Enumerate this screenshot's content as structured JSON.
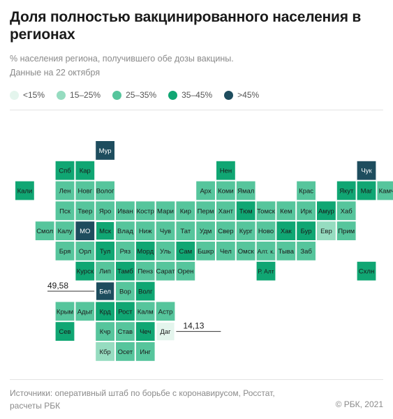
{
  "header": {
    "title": "Доля полностью вакцинированного населения в регионах",
    "subtitle": "% населения региона, получившего обе дозы вакцины.",
    "date": "Данные на 22 октября"
  },
  "legend": [
    {
      "label": "<15%",
      "color": "#e4f5ed"
    },
    {
      "label": "15–25%",
      "color": "#96dcc0"
    },
    {
      "label": "25–35%",
      "color": "#56c59c"
    },
    {
      "label": "35–45%",
      "color": "#10a673"
    },
    {
      "label": ">45%",
      "color": "#1e4d5e"
    }
  ],
  "chart_data": {
    "type": "heatmap",
    "layout": "tile grid map of Russian regions",
    "bins": [
      "<15%",
      "15–25%",
      "25–35%",
      "35–45%",
      ">45%"
    ],
    "regions": [
      {
        "name": "Мур",
        "col": 4,
        "row": 0,
        "bin": 4
      },
      {
        "name": "Спб",
        "col": 2,
        "row": 1,
        "bin": 3
      },
      {
        "name": "Кар",
        "col": 3,
        "row": 1,
        "bin": 3
      },
      {
        "name": "Нен",
        "col": 10,
        "row": 1,
        "bin": 3
      },
      {
        "name": "Чук",
        "col": 17,
        "row": 1,
        "bin": 4
      },
      {
        "name": "Кали",
        "col": 0,
        "row": 2,
        "bin": 3
      },
      {
        "name": "Лен",
        "col": 2,
        "row": 2,
        "bin": 2
      },
      {
        "name": "Новг",
        "col": 3,
        "row": 2,
        "bin": 2
      },
      {
        "name": "Волог",
        "col": 4,
        "row": 2,
        "bin": 2
      },
      {
        "name": "Арх",
        "col": 9,
        "row": 2,
        "bin": 2
      },
      {
        "name": "Коми",
        "col": 10,
        "row": 2,
        "bin": 2
      },
      {
        "name": "Ямал",
        "col": 11,
        "row": 2,
        "bin": 2
      },
      {
        "name": "Крас",
        "col": 14,
        "row": 2,
        "bin": 2
      },
      {
        "name": "Якут",
        "col": 16,
        "row": 2,
        "bin": 3
      },
      {
        "name": "Маг",
        "col": 17,
        "row": 2,
        "bin": 3
      },
      {
        "name": "Камч",
        "col": 18,
        "row": 2,
        "bin": 2
      },
      {
        "name": "Пск",
        "col": 2,
        "row": 3,
        "bin": 2
      },
      {
        "name": "Твер",
        "col": 3,
        "row": 3,
        "bin": 2
      },
      {
        "name": "Яро",
        "col": 4,
        "row": 3,
        "bin": 2
      },
      {
        "name": "Иван",
        "col": 5,
        "row": 3,
        "bin": 2
      },
      {
        "name": "Костр",
        "col": 6,
        "row": 3,
        "bin": 2
      },
      {
        "name": "Мари",
        "col": 7,
        "row": 3,
        "bin": 2
      },
      {
        "name": "Кир",
        "col": 8,
        "row": 3,
        "bin": 2
      },
      {
        "name": "Перм",
        "col": 9,
        "row": 3,
        "bin": 2
      },
      {
        "name": "Хант",
        "col": 10,
        "row": 3,
        "bin": 2
      },
      {
        "name": "Тюм",
        "col": 11,
        "row": 3,
        "bin": 3
      },
      {
        "name": "Томск",
        "col": 12,
        "row": 3,
        "bin": 2
      },
      {
        "name": "Кем",
        "col": 13,
        "row": 3,
        "bin": 2
      },
      {
        "name": "Ирк",
        "col": 14,
        "row": 3,
        "bin": 2
      },
      {
        "name": "Амур",
        "col": 15,
        "row": 3,
        "bin": 3
      },
      {
        "name": "Хаб",
        "col": 16,
        "row": 3,
        "bin": 2
      },
      {
        "name": "Смол",
        "col": 1,
        "row": 4,
        "bin": 2
      },
      {
        "name": "Калу",
        "col": 2,
        "row": 4,
        "bin": 2
      },
      {
        "name": "МО",
        "col": 3,
        "row": 4,
        "bin": 4
      },
      {
        "name": "Мск",
        "col": 4,
        "row": 4,
        "bin": 3,
        "highlight": true
      },
      {
        "name": "Влад",
        "col": 5,
        "row": 4,
        "bin": 2
      },
      {
        "name": "Ниж",
        "col": 6,
        "row": 4,
        "bin": 2
      },
      {
        "name": "Чув",
        "col": 7,
        "row": 4,
        "bin": 2
      },
      {
        "name": "Тат",
        "col": 8,
        "row": 4,
        "bin": 2
      },
      {
        "name": "Удм",
        "col": 9,
        "row": 4,
        "bin": 2
      },
      {
        "name": "Свер",
        "col": 10,
        "row": 4,
        "bin": 2
      },
      {
        "name": "Кург",
        "col": 11,
        "row": 4,
        "bin": 2
      },
      {
        "name": "Ново",
        "col": 12,
        "row": 4,
        "bin": 2
      },
      {
        "name": "Хак",
        "col": 13,
        "row": 4,
        "bin": 3
      },
      {
        "name": "Бур",
        "col": 14,
        "row": 4,
        "bin": 3
      },
      {
        "name": "Евр",
        "col": 15,
        "row": 4,
        "bin": 1
      },
      {
        "name": "Прим",
        "col": 16,
        "row": 4,
        "bin": 2
      },
      {
        "name": "Бря",
        "col": 2,
        "row": 5,
        "bin": 2
      },
      {
        "name": "Орл",
        "col": 3,
        "row": 5,
        "bin": 2
      },
      {
        "name": "Тул",
        "col": 4,
        "row": 5,
        "bin": 3
      },
      {
        "name": "Ряз",
        "col": 5,
        "row": 5,
        "bin": 2
      },
      {
        "name": "Морд",
        "col": 6,
        "row": 5,
        "bin": 3
      },
      {
        "name": "Уль",
        "col": 7,
        "row": 5,
        "bin": 2
      },
      {
        "name": "Сам",
        "col": 8,
        "row": 5,
        "bin": 3
      },
      {
        "name": "Бшкр",
        "col": 9,
        "row": 5,
        "bin": 2
      },
      {
        "name": "Чел",
        "col": 10,
        "row": 5,
        "bin": 2
      },
      {
        "name": "Омск",
        "col": 11,
        "row": 5,
        "bin": 2
      },
      {
        "name": "Алт. к.",
        "col": 12,
        "row": 5,
        "bin": 2
      },
      {
        "name": "Тыва",
        "col": 13,
        "row": 5,
        "bin": 2
      },
      {
        "name": "Заб",
        "col": 14,
        "row": 5,
        "bin": 2
      },
      {
        "name": "Курск",
        "col": 3,
        "row": 6,
        "bin": 3
      },
      {
        "name": "Лип",
        "col": 4,
        "row": 6,
        "bin": 2
      },
      {
        "name": "Тамб",
        "col": 5,
        "row": 6,
        "bin": 3
      },
      {
        "name": "Пенз",
        "col": 6,
        "row": 6,
        "bin": 2
      },
      {
        "name": "Сарат",
        "col": 7,
        "row": 6,
        "bin": 2
      },
      {
        "name": "Орен",
        "col": 8,
        "row": 6,
        "bin": 2
      },
      {
        "name": "Р. Алт",
        "col": 12,
        "row": 6,
        "bin": 3
      },
      {
        "name": "Схлн",
        "col": 17,
        "row": 6,
        "bin": 3
      },
      {
        "name": "Бел",
        "col": 4,
        "row": 7,
        "bin": 4,
        "highlight": true
      },
      {
        "name": "Вор",
        "col": 5,
        "row": 7,
        "bin": 2
      },
      {
        "name": "Волг",
        "col": 6,
        "row": 7,
        "bin": 3
      },
      {
        "name": "Крым",
        "col": 2,
        "row": 8,
        "bin": 2
      },
      {
        "name": "Адыг",
        "col": 3,
        "row": 8,
        "bin": 2
      },
      {
        "name": "Крд",
        "col": 4,
        "row": 8,
        "bin": 3
      },
      {
        "name": "Рост",
        "col": 5,
        "row": 8,
        "bin": 3
      },
      {
        "name": "Калм",
        "col": 6,
        "row": 8,
        "bin": 2
      },
      {
        "name": "Астр",
        "col": 7,
        "row": 8,
        "bin": 2
      },
      {
        "name": "Сев",
        "col": 2,
        "row": 9,
        "bin": 3
      },
      {
        "name": "Кчр",
        "col": 4,
        "row": 9,
        "bin": 2
      },
      {
        "name": "Став",
        "col": 5,
        "row": 9,
        "bin": 2
      },
      {
        "name": "Чеч",
        "col": 6,
        "row": 9,
        "bin": 3
      },
      {
        "name": "Даг",
        "col": 7,
        "row": 9,
        "bin": 0,
        "highlight": true
      },
      {
        "name": "Кбр",
        "col": 4,
        "row": 10,
        "bin": 1
      },
      {
        "name": "Осет",
        "col": 5,
        "row": 10,
        "bin": 2
      },
      {
        "name": "Инг",
        "col": 6,
        "row": 10,
        "bin": 2
      }
    ],
    "annotations": [
      {
        "region": "Бел",
        "value": "49,58",
        "side": "left"
      },
      {
        "region": "Даг",
        "value": "14,13",
        "side": "right"
      }
    ]
  },
  "footer": {
    "sources": "Источники: оперативный штаб по борьбе с коронавирусом, Росстат, расчеты РБК",
    "credit": "© РБК, 2021"
  }
}
